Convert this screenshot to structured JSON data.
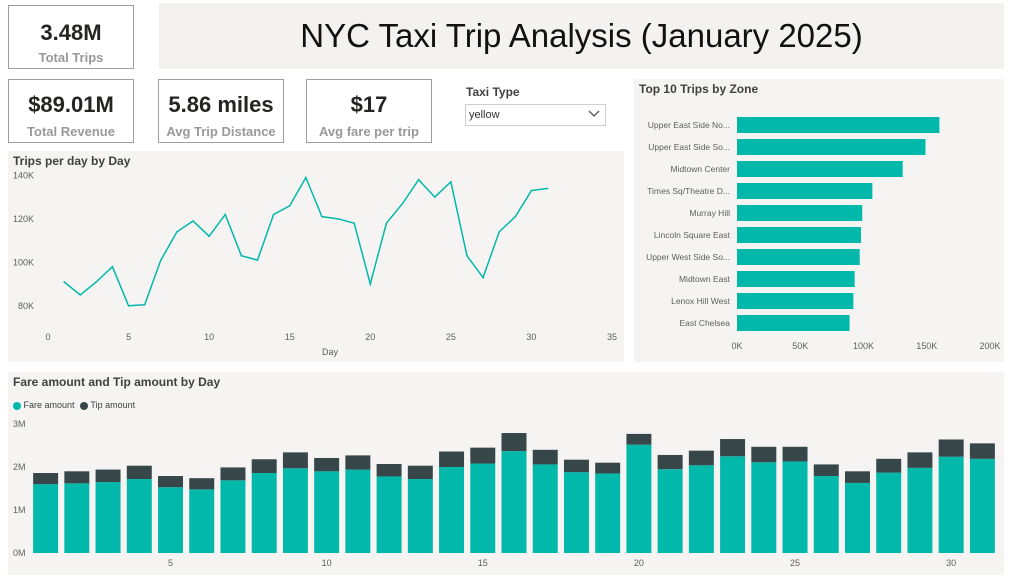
{
  "title": "NYC Taxi Trip Analysis (January 2025)",
  "kpis": {
    "total_trips": {
      "value": "3.48M",
      "label": "Total Trips"
    },
    "total_revenue": {
      "value": "$89.01M",
      "label": "Total Revenue"
    },
    "avg_distance": {
      "value": "5.86 miles",
      "label": "Avg Trip Distance"
    },
    "avg_fare": {
      "value": "$17",
      "label": "Avg fare per trip"
    }
  },
  "slicer": {
    "label": "Taxi Type",
    "selected": "yellow"
  },
  "colors": {
    "teal": "#01b8aa",
    "dark": "#374649",
    "panel": "#f5f4f2"
  },
  "chart_data": [
    {
      "id": "trips_per_day",
      "type": "line",
      "title": "Trips per day by Day",
      "xlabel": "Day",
      "ylabel": "",
      "xlim": [
        0,
        35
      ],
      "xticks": [
        0,
        5,
        10,
        15,
        20,
        25,
        30,
        35
      ],
      "yticks": [
        {
          "v": 80000,
          "label": "80K"
        },
        {
          "v": 100000,
          "label": "100K"
        },
        {
          "v": 120000,
          "label": "120K"
        },
        {
          "v": 140000,
          "label": "140K"
        }
      ],
      "ylim": [
        73000,
        142000
      ],
      "x": [
        1,
        2,
        3,
        4,
        5,
        6,
        7,
        8,
        9,
        10,
        11,
        12,
        13,
        14,
        15,
        16,
        17,
        18,
        19,
        20,
        21,
        22,
        23,
        24,
        25,
        26,
        27,
        28,
        29,
        30,
        31
      ],
      "values": [
        91000,
        85000,
        91000,
        98000,
        80000,
        80500,
        101000,
        114000,
        119000,
        112000,
        122000,
        103000,
        101000,
        122000,
        126000,
        139000,
        121000,
        120000,
        118000,
        90000,
        118000,
        127000,
        138000,
        130000,
        137000,
        103000,
        93000,
        114000,
        121000,
        133000,
        134000
      ]
    },
    {
      "id": "top_zones",
      "type": "bar",
      "orientation": "horizontal",
      "title": "Top 10 Trips by Zone",
      "categories": [
        "Upper East Side No...",
        "Upper East Side So...",
        "Midtown Center",
        "Times Sq/Theatre D...",
        "Murray Hill",
        "Lincoln Square East",
        "Upper West Side So...",
        "Midtown East",
        "Lenox Hill West",
        "East Chelsea"
      ],
      "values": [
        160000,
        149000,
        131000,
        107000,
        99000,
        98000,
        97000,
        93000,
        92000,
        89000
      ],
      "xlim": [
        0,
        200000
      ],
      "xticks": [
        {
          "v": 0,
          "label": "0K"
        },
        {
          "v": 50000,
          "label": "50K"
        },
        {
          "v": 100000,
          "label": "100K"
        },
        {
          "v": 150000,
          "label": "150K"
        },
        {
          "v": 200000,
          "label": "200K"
        }
      ]
    },
    {
      "id": "fare_tip_by_day",
      "type": "bar",
      "stacked": true,
      "title": "Fare amount and Tip amount by Day",
      "legend": [
        "Fare amount",
        "Tip amount"
      ],
      "ylim": [
        0,
        3000000
      ],
      "yticks": [
        {
          "v": 0,
          "label": "0M"
        },
        {
          "v": 1000000,
          "label": "1M"
        },
        {
          "v": 2000000,
          "label": "2M"
        },
        {
          "v": 3000000,
          "label": "3M"
        }
      ],
      "xticks": [
        5,
        10,
        15,
        20,
        25,
        30
      ],
      "categories": [
        1,
        2,
        3,
        4,
        5,
        6,
        7,
        8,
        9,
        10,
        11,
        12,
        13,
        14,
        15,
        16,
        17,
        18,
        19,
        20,
        21,
        22,
        23,
        24,
        25,
        26,
        27,
        28,
        29,
        30,
        31
      ],
      "series": [
        {
          "name": "Fare amount",
          "values": [
            1600000,
            1620000,
            1650000,
            1720000,
            1530000,
            1480000,
            1690000,
            1860000,
            1970000,
            1900000,
            1940000,
            1780000,
            1720000,
            2000000,
            2080000,
            2370000,
            2060000,
            1880000,
            1850000,
            2520000,
            1950000,
            2040000,
            2250000,
            2110000,
            2130000,
            1790000,
            1630000,
            1870000,
            1980000,
            2240000,
            2190000
          ]
        },
        {
          "name": "Tip amount",
          "values": [
            260000,
            280000,
            290000,
            310000,
            260000,
            260000,
            300000,
            320000,
            370000,
            310000,
            330000,
            290000,
            310000,
            360000,
            370000,
            420000,
            340000,
            290000,
            250000,
            250000,
            330000,
            340000,
            400000,
            360000,
            340000,
            270000,
            270000,
            320000,
            360000,
            400000,
            360000
          ]
        }
      ]
    }
  ]
}
